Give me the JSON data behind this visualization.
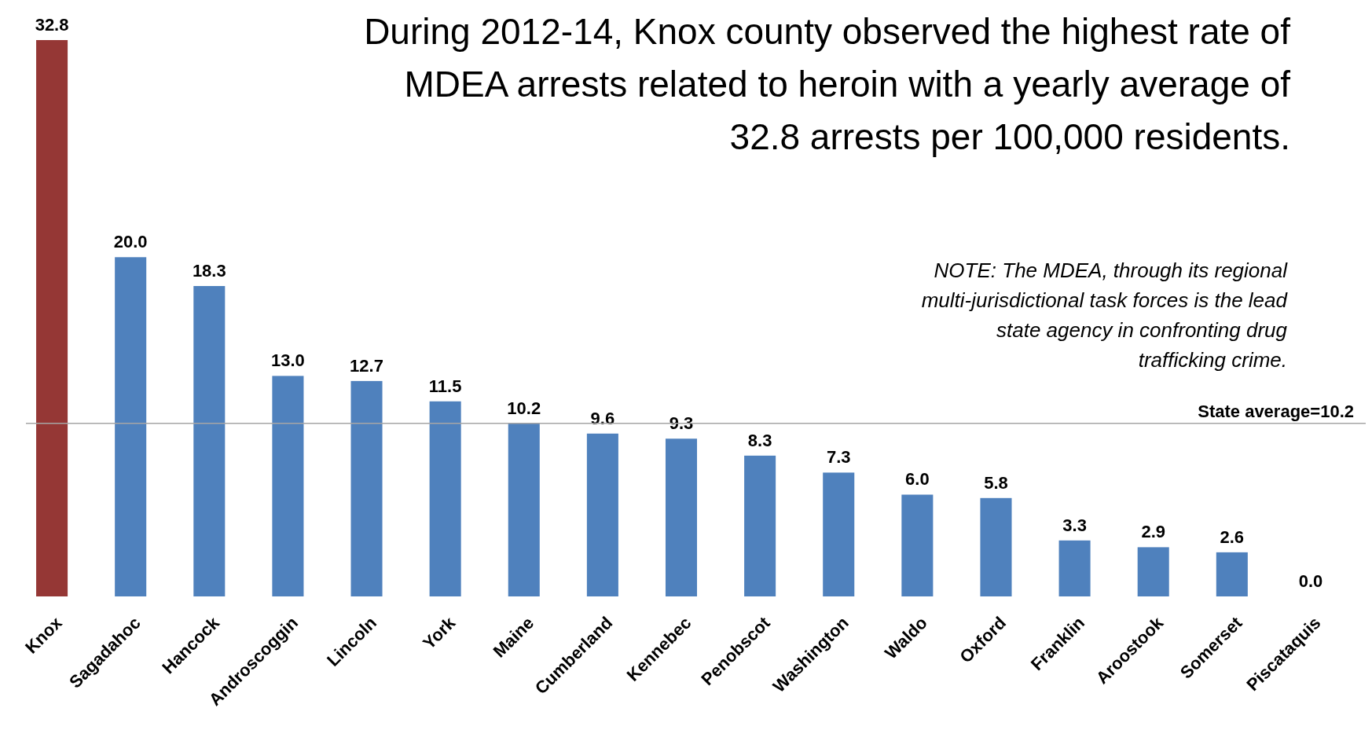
{
  "chart_data": {
    "type": "bar",
    "title": "During 2012-14, Knox county observed the highest rate of MDEA arrests related to heroin with a yearly average of 32.8 arrests per 100,000 residents.",
    "categories": [
      "Knox",
      "Sagadahoc",
      "Hancock",
      "Androscoggin",
      "Lincoln",
      "York",
      "Maine",
      "Cumberland",
      "Kennebec",
      "Penobscot",
      "Washington",
      "Waldo",
      "Oxford",
      "Franklin",
      "Aroostook",
      "Somerset",
      "Piscataquis"
    ],
    "values": [
      32.8,
      20.0,
      18.3,
      13.0,
      12.7,
      11.5,
      10.2,
      9.6,
      9.3,
      8.3,
      7.3,
      6.0,
      5.8,
      3.3,
      2.9,
      2.6,
      0.0
    ],
    "colors": [
      "#953735",
      "#4f81bd",
      "#4f81bd",
      "#4f81bd",
      "#4f81bd",
      "#4f81bd",
      "#4f81bd",
      "#4f81bd",
      "#4f81bd",
      "#4f81bd",
      "#4f81bd",
      "#4f81bd",
      "#4f81bd",
      "#4f81bd",
      "#4f81bd",
      "#4f81bd",
      "#4f81bd"
    ],
    "value_labels": [
      "32.8",
      "20.0",
      "18.3",
      "13.0",
      "12.7",
      "11.5",
      "10.2",
      "9.6",
      "9.3",
      "8.3",
      "7.3",
      "6.0",
      "5.8",
      "3.3",
      "2.9",
      "2.6",
      "0.0"
    ],
    "ref_lines": [
      {
        "axis": "y",
        "value": 10.2,
        "label": "State average=10.2",
        "color": "#a6a6a6"
      }
    ],
    "annotations": [
      "NOTE: The MDEA, through its regional multi-jurisdictional task forces is the lead state agency in confronting drug trafficking crime."
    ]
  }
}
